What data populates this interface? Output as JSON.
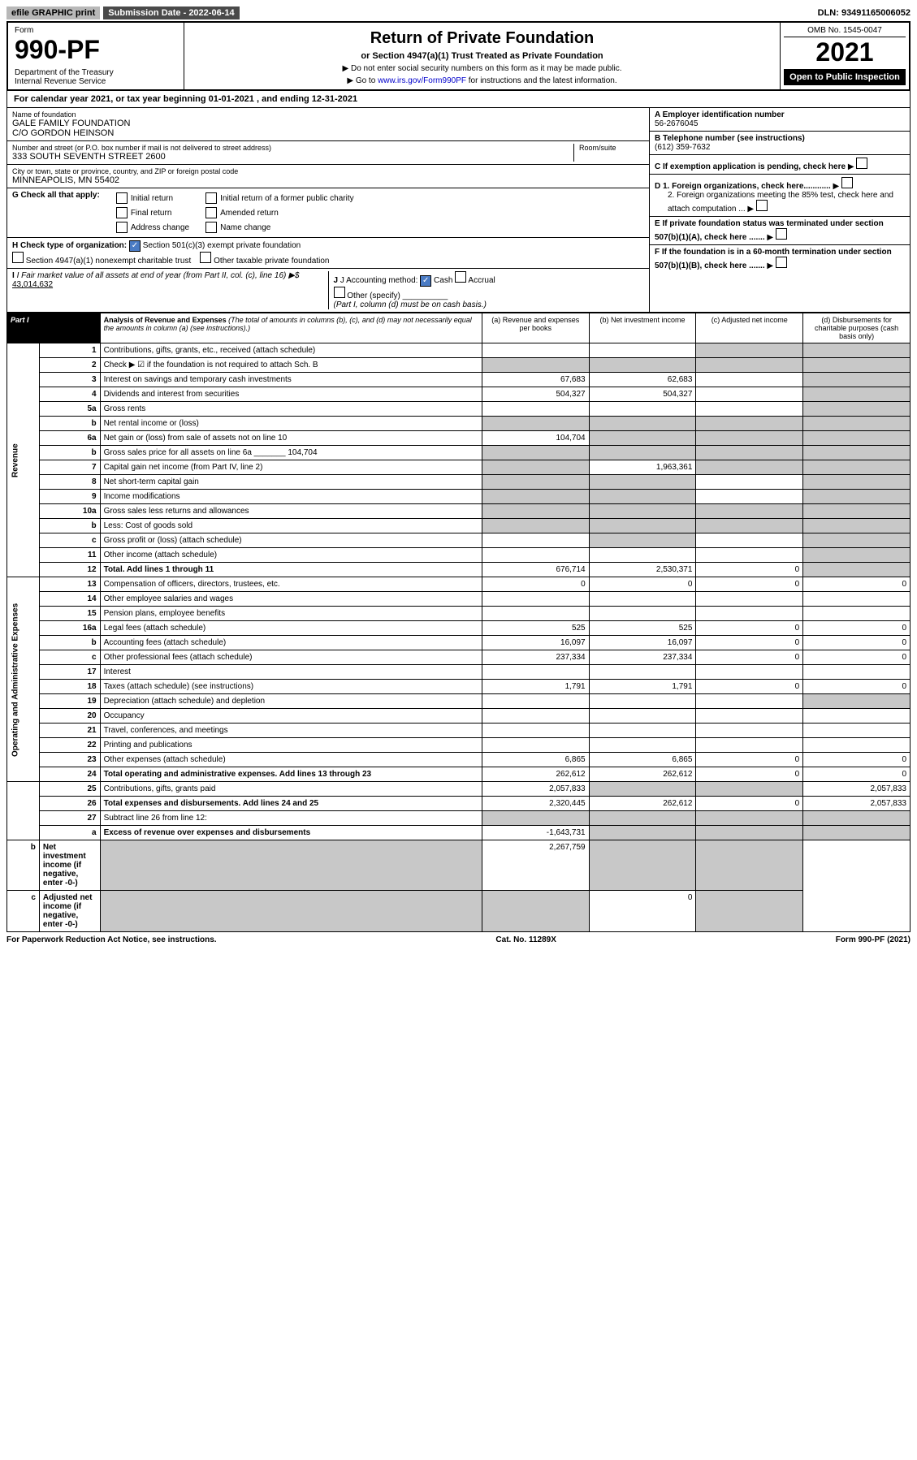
{
  "top": {
    "efile": "efile GRAPHIC print",
    "submission": "Submission Date - 2022-06-14",
    "dln": "DLN: 93491165006052"
  },
  "header": {
    "form_label": "Form",
    "form_number": "990-PF",
    "dept": "Department of the Treasury\nInternal Revenue Service",
    "title": "Return of Private Foundation",
    "subtitle": "or Section 4947(a)(1) Trust Treated as Private Foundation",
    "note1": "▶ Do not enter social security numbers on this form as it may be made public.",
    "note2_prefix": "▶ Go to ",
    "note2_link": "www.irs.gov/Form990PF",
    "note2_suffix": " for instructions and the latest information.",
    "omb": "OMB No. 1545-0047",
    "year": "2021",
    "inspection": "Open to Public Inspection"
  },
  "calendar": "For calendar year 2021, or tax year beginning 01-01-2021                           , and ending 12-31-2021",
  "foundation": {
    "name_label": "Name of foundation",
    "name": "GALE FAMILY FOUNDATION\nC/O GORDON HEINSON",
    "address_label": "Number and street (or P.O. box number if mail is not delivered to street address)",
    "address": "333 SOUTH SEVENTH STREET 2600",
    "room_label": "Room/suite",
    "city_label": "City or town, state or province, country, and ZIP or foreign postal code",
    "city": "MINNEAPOLIS, MN  55402"
  },
  "right_info": {
    "a_label": "A Employer identification number",
    "a_value": "56-2676045",
    "b_label": "B Telephone number (see instructions)",
    "b_value": "(612) 359-7632",
    "c_label": "C If exemption application is pending, check here",
    "d1_label": "D 1. Foreign organizations, check here............",
    "d2_label": "2. Foreign organizations meeting the 85% test, check here and attach computation ...",
    "e_label": "E If private foundation status was terminated under section 507(b)(1)(A), check here .......",
    "f_label": "F If the foundation is in a 60-month termination under section 507(b)(1)(B), check here ......."
  },
  "g": {
    "label": "G Check all that apply:",
    "initial": "Initial return",
    "initial_former": "Initial return of a former public charity",
    "final": "Final return",
    "amended": "Amended return",
    "address_change": "Address change",
    "name_change": "Name change"
  },
  "h": {
    "label": "H Check type of organization:",
    "opt1": "Section 501(c)(3) exempt private foundation",
    "opt2": "Section 4947(a)(1) nonexempt charitable trust",
    "opt3": "Other taxable private foundation"
  },
  "i": {
    "label": "I Fair market value of all assets at end of year (from Part II, col. (c), line 16) ▶$",
    "value": "43,014,632"
  },
  "j": {
    "label": "J Accounting method:",
    "cash": "Cash",
    "accrual": "Accrual",
    "other": "Other (specify)",
    "note": "(Part I, column (d) must be on cash basis.)"
  },
  "part1": {
    "label": "Part I",
    "title": "Analysis of Revenue and Expenses",
    "desc": "(The total of amounts in columns (b), (c), and (d) may not necessarily equal the amounts in column (a) (see instructions).)",
    "col_a": "(a) Revenue and expenses per books",
    "col_b": "(b) Net investment income",
    "col_c": "(c) Adjusted net income",
    "col_d": "(d) Disbursements for charitable purposes (cash basis only)"
  },
  "revenue_label": "Revenue",
  "expenses_label": "Operating and Administrative Expenses",
  "rows": [
    {
      "n": "1",
      "desc": "Contributions, gifts, grants, etc., received (attach schedule)",
      "a": "",
      "b": "",
      "c": "shade",
      "d": "shade"
    },
    {
      "n": "2",
      "desc": "Check ▶ ☑ if the foundation is not required to attach Sch. B",
      "a": "shade",
      "b": "shade",
      "c": "shade",
      "d": "shade",
      "bold": false
    },
    {
      "n": "3",
      "desc": "Interest on savings and temporary cash investments",
      "a": "67,683",
      "b": "62,683",
      "c": "",
      "d": "shade"
    },
    {
      "n": "4",
      "desc": "Dividends and interest from securities",
      "a": "504,327",
      "b": "504,327",
      "c": "",
      "d": "shade"
    },
    {
      "n": "5a",
      "desc": "Gross rents",
      "a": "",
      "b": "",
      "c": "",
      "d": "shade"
    },
    {
      "n": "b",
      "desc": "Net rental income or (loss)",
      "a": "shade",
      "b": "shade",
      "c": "shade",
      "d": "shade"
    },
    {
      "n": "6a",
      "desc": "Net gain or (loss) from sale of assets not on line 10",
      "a": "104,704",
      "b": "shade",
      "c": "shade",
      "d": "shade"
    },
    {
      "n": "b",
      "desc": "Gross sales price for all assets on line 6a _______ 104,704",
      "a": "shade",
      "b": "shade",
      "c": "shade",
      "d": "shade"
    },
    {
      "n": "7",
      "desc": "Capital gain net income (from Part IV, line 2)",
      "a": "shade",
      "b": "1,963,361",
      "c": "shade",
      "d": "shade"
    },
    {
      "n": "8",
      "desc": "Net short-term capital gain",
      "a": "shade",
      "b": "shade",
      "c": "",
      "d": "shade"
    },
    {
      "n": "9",
      "desc": "Income modifications",
      "a": "shade",
      "b": "shade",
      "c": "",
      "d": "shade"
    },
    {
      "n": "10a",
      "desc": "Gross sales less returns and allowances",
      "a": "shade",
      "b": "shade",
      "c": "shade",
      "d": "shade"
    },
    {
      "n": "b",
      "desc": "Less: Cost of goods sold",
      "a": "shade",
      "b": "shade",
      "c": "shade",
      "d": "shade"
    },
    {
      "n": "c",
      "desc": "Gross profit or (loss) (attach schedule)",
      "a": "",
      "b": "shade",
      "c": "",
      "d": "shade"
    },
    {
      "n": "11",
      "desc": "Other income (attach schedule)",
      "a": "",
      "b": "",
      "c": "",
      "d": "shade"
    },
    {
      "n": "12",
      "desc": "Total. Add lines 1 through 11",
      "a": "676,714",
      "b": "2,530,371",
      "c": "0",
      "d": "shade",
      "bold": true
    },
    {
      "n": "13",
      "desc": "Compensation of officers, directors, trustees, etc.",
      "a": "0",
      "b": "0",
      "c": "0",
      "d": "0"
    },
    {
      "n": "14",
      "desc": "Other employee salaries and wages",
      "a": "",
      "b": "",
      "c": "",
      "d": ""
    },
    {
      "n": "15",
      "desc": "Pension plans, employee benefits",
      "a": "",
      "b": "",
      "c": "",
      "d": ""
    },
    {
      "n": "16a",
      "desc": "Legal fees (attach schedule)",
      "a": "525",
      "b": "525",
      "c": "0",
      "d": "0"
    },
    {
      "n": "b",
      "desc": "Accounting fees (attach schedule)",
      "a": "16,097",
      "b": "16,097",
      "c": "0",
      "d": "0"
    },
    {
      "n": "c",
      "desc": "Other professional fees (attach schedule)",
      "a": "237,334",
      "b": "237,334",
      "c": "0",
      "d": "0"
    },
    {
      "n": "17",
      "desc": "Interest",
      "a": "",
      "b": "",
      "c": "",
      "d": ""
    },
    {
      "n": "18",
      "desc": "Taxes (attach schedule) (see instructions)",
      "a": "1,791",
      "b": "1,791",
      "c": "0",
      "d": "0"
    },
    {
      "n": "19",
      "desc": "Depreciation (attach schedule) and depletion",
      "a": "",
      "b": "",
      "c": "",
      "d": "shade"
    },
    {
      "n": "20",
      "desc": "Occupancy",
      "a": "",
      "b": "",
      "c": "",
      "d": ""
    },
    {
      "n": "21",
      "desc": "Travel, conferences, and meetings",
      "a": "",
      "b": "",
      "c": "",
      "d": ""
    },
    {
      "n": "22",
      "desc": "Printing and publications",
      "a": "",
      "b": "",
      "c": "",
      "d": ""
    },
    {
      "n": "23",
      "desc": "Other expenses (attach schedule)",
      "a": "6,865",
      "b": "6,865",
      "c": "0",
      "d": "0"
    },
    {
      "n": "24",
      "desc": "Total operating and administrative expenses. Add lines 13 through 23",
      "a": "262,612",
      "b": "262,612",
      "c": "0",
      "d": "0",
      "bold": true
    },
    {
      "n": "25",
      "desc": "Contributions, gifts, grants paid",
      "a": "2,057,833",
      "b": "shade",
      "c": "shade",
      "d": "2,057,833"
    },
    {
      "n": "26",
      "desc": "Total expenses and disbursements. Add lines 24 and 25",
      "a": "2,320,445",
      "b": "262,612",
      "c": "0",
      "d": "2,057,833",
      "bold": true
    },
    {
      "n": "27",
      "desc": "Subtract line 26 from line 12:",
      "a": "shade",
      "b": "shade",
      "c": "shade",
      "d": "shade"
    },
    {
      "n": "a",
      "desc": "Excess of revenue over expenses and disbursements",
      "a": "-1,643,731",
      "b": "shade",
      "c": "shade",
      "d": "shade",
      "bold": true
    },
    {
      "n": "b",
      "desc": "Net investment income (if negative, enter -0-)",
      "a": "shade",
      "b": "2,267,759",
      "c": "shade",
      "d": "shade",
      "bold": true
    },
    {
      "n": "c",
      "desc": "Adjusted net income (if negative, enter -0-)",
      "a": "shade",
      "b": "shade",
      "c": "0",
      "d": "shade",
      "bold": true
    }
  ],
  "footer": {
    "left": "For Paperwork Reduction Act Notice, see instructions.",
    "center": "Cat. No. 11289X",
    "right": "Form 990-PF (2021)"
  }
}
